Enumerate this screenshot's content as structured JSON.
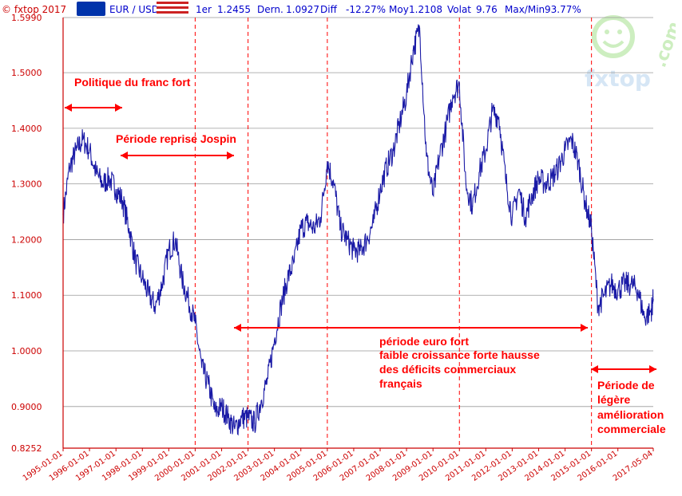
{
  "header": {
    "copyright": "© fxtop 2017",
    "pair": "EUR / USD",
    "first_label": "1er",
    "first_value": "1.2455",
    "last_label": "Dern.",
    "last_value": "1.0927",
    "diff_label": "Diff",
    "diff_value": "-12.27%",
    "avg_label": "Moy",
    "avg_value": "1.2108",
    "vol_label": "Volat",
    "vol_value": "9.76",
    "maxmin_label": "Max/Min",
    "maxmin_value": "93.77%"
  },
  "logo": {
    "text": "fxtop",
    "suffix": ".com"
  },
  "colors": {
    "line": "#1a1aa6",
    "axis": "#cc0000",
    "annotation": "#ff0000",
    "grid": "#999999"
  },
  "chart_data": {
    "type": "line",
    "title": "",
    "xlabel": "",
    "ylabel": "",
    "ylim": [
      0.8252,
      1.599
    ],
    "xlim": [
      "1995-01-01",
      "2017-05-04"
    ],
    "grid": true,
    "yticks": [
      "0.8252",
      "0.9000",
      "1.0000",
      "1.1000",
      "1.2000",
      "1.3000",
      "1.4000",
      "1.5000",
      "1.5990"
    ],
    "xticks": [
      "1995-01-01",
      "1996-01-01",
      "1997-01-01",
      "1998-01-01",
      "1999-01-01",
      "2000-01-01",
      "2001-01-01",
      "2002-01-01",
      "2003-01-01",
      "2004-01-01",
      "2005-01-01",
      "2006-01-01",
      "2007-01-01",
      "2008-01-01",
      "2009-01-01",
      "2010-01-01",
      "2011-01-01",
      "2012-01-01",
      "2013-01-01",
      "2014-01-01",
      "2015-01-01",
      "2016-01-01",
      "2017-05-04"
    ],
    "vlines": [
      "2000-01-01",
      "2002-01-01",
      "2005-01-01",
      "2010-01-01",
      "2015-01-01"
    ],
    "series": [
      {
        "x": [
          "1995-01-01",
          "1995-04-01",
          "1995-07-01",
          "1995-10-01",
          "1996-01-01",
          "1996-04-01",
          "1996-07-01",
          "1996-10-01",
          "1997-01-01",
          "1997-04-01",
          "1997-07-01",
          "1997-10-01",
          "1998-01-01",
          "1998-04-01",
          "1998-07-01",
          "1998-10-01",
          "1999-01-01",
          "1999-04-01",
          "1999-07-01",
          "1999-10-01",
          "2000-01-01",
          "2000-04-01",
          "2000-07-01",
          "2000-10-01",
          "2001-01-01",
          "2001-04-01",
          "2001-07-01",
          "2001-10-01",
          "2002-01-01",
          "2002-04-01",
          "2002-07-01",
          "2002-10-01",
          "2003-01-01",
          "2003-04-01",
          "2003-07-01",
          "2003-10-01",
          "2004-01-01",
          "2004-04-01",
          "2004-07-01",
          "2004-10-01",
          "2005-01-01",
          "2005-04-01",
          "2005-07-01",
          "2005-10-01",
          "2006-01-01",
          "2006-04-01",
          "2006-07-01",
          "2006-10-01",
          "2007-01-01",
          "2007-04-01",
          "2007-07-01",
          "2007-10-01",
          "2008-01-01",
          "2008-04-01",
          "2008-07-01",
          "2008-10-01",
          "2009-01-01",
          "2009-04-01",
          "2009-07-01",
          "2009-10-01",
          "2010-01-01",
          "2010-04-01",
          "2010-07-01",
          "2010-10-01",
          "2011-01-01",
          "2011-04-01",
          "2011-07-01",
          "2011-10-01",
          "2012-01-01",
          "2012-04-01",
          "2012-07-01",
          "2012-10-01",
          "2013-01-01",
          "2013-04-01",
          "2013-07-01",
          "2013-10-01",
          "2014-01-01",
          "2014-04-01",
          "2014-07-01",
          "2014-10-01",
          "2015-01-01",
          "2015-04-01",
          "2015-07-01",
          "2015-10-01",
          "2016-01-01",
          "2016-04-01",
          "2016-07-01",
          "2016-10-01",
          "2017-01-01",
          "2017-04-01",
          "2017-05-04"
        ],
        "values": [
          1.2455,
          1.33,
          1.36,
          1.38,
          1.36,
          1.32,
          1.3,
          1.31,
          1.29,
          1.27,
          1.22,
          1.16,
          1.13,
          1.1,
          1.08,
          1.12,
          1.18,
          1.2,
          1.13,
          1.09,
          1.05,
          0.97,
          0.94,
          0.89,
          0.9,
          0.88,
          0.86,
          0.88,
          0.88,
          0.87,
          0.91,
          0.95,
          1.02,
          1.08,
          1.13,
          1.16,
          1.22,
          1.23,
          1.22,
          1.24,
          1.34,
          1.3,
          1.22,
          1.2,
          1.18,
          1.18,
          1.2,
          1.23,
          1.29,
          1.33,
          1.36,
          1.41,
          1.46,
          1.54,
          1.58,
          1.35,
          1.28,
          1.35,
          1.4,
          1.46,
          1.48,
          1.3,
          1.26,
          1.32,
          1.36,
          1.43,
          1.42,
          1.31,
          1.24,
          1.29,
          1.24,
          1.28,
          1.31,
          1.3,
          1.31,
          1.33,
          1.36,
          1.38,
          1.34,
          1.27,
          1.22,
          1.08,
          1.1,
          1.12,
          1.11,
          1.12,
          1.12,
          1.11,
          1.06,
          1.07,
          1.0927
        ]
      }
    ],
    "annotations": [
      "Politique du franc fort",
      "Période reprise Jospin",
      "période euro fort",
      "faible croissance forte hausse",
      "des déficits commerciaux",
      "français",
      "Période de",
      "légère",
      "amélioration",
      "commerciale"
    ]
  }
}
